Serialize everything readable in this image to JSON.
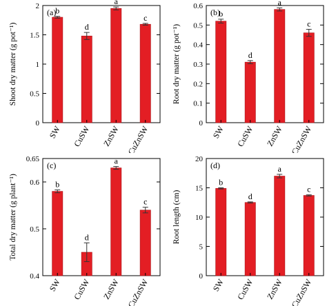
{
  "figure": {
    "bar_color": "#e31e24",
    "axis_color": "#000000"
  },
  "chart_data": [
    {
      "type": "bar",
      "panel_label": "(a)",
      "title": "",
      "xlabel": "",
      "ylabel": "Shoot dry matter (g pot⁻¹)",
      "categories": [
        "SW",
        "CuSW",
        "ZnSW",
        "CuZnSW"
      ],
      "values": [
        1.8,
        1.48,
        1.95,
        1.68
      ],
      "errors": [
        0.015,
        0.06,
        0.025,
        0.015
      ],
      "letters": [
        "b",
        "d",
        "a",
        "c"
      ],
      "ylim": [
        0,
        2
      ],
      "yticks": [
        "0",
        "0.5",
        "1",
        "1.5",
        "2"
      ],
      "ytick_values": [
        0,
        0.5,
        1,
        1.5,
        2
      ],
      "grid": false
    },
    {
      "type": "bar",
      "panel_label": "(b)",
      "title": "",
      "xlabel": "",
      "ylabel": "Root dry matter (g pot⁻¹)",
      "categories": [
        "SW",
        "CuSW",
        "ZnSW",
        "CuZnSW"
      ],
      "values": [
        0.52,
        0.31,
        0.58,
        0.46
      ],
      "errors": [
        0.01,
        0.008,
        0.008,
        0.018
      ],
      "letters": [
        "b",
        "d",
        "a",
        "c"
      ],
      "ylim": [
        0,
        0.6
      ],
      "yticks": [
        "0",
        "0.1",
        "0.2",
        "0.3",
        "0.4",
        "0.5",
        "0.6"
      ],
      "ytick_values": [
        0,
        0.1,
        0.2,
        0.3,
        0.4,
        0.5,
        0.6
      ],
      "grid": false
    },
    {
      "type": "bar",
      "panel_label": "(c)",
      "title": "",
      "xlabel": "",
      "ylabel": "Total dry matter (g plant⁻¹)",
      "categories": [
        "SW",
        "CuSW",
        "ZnSW",
        "CuZnSW"
      ],
      "values": [
        0.58,
        0.45,
        0.63,
        0.54
      ],
      "errors": [
        0.003,
        0.02,
        0.003,
        0.006
      ],
      "letters": [
        "b",
        "d",
        "a",
        "c"
      ],
      "ylim": [
        0.4,
        0.65
      ],
      "yticks": [
        "0.4",
        "0.5",
        "0.6",
        "0.65"
      ],
      "ytick_values": [
        0.4,
        0.5,
        0.6,
        0.65
      ],
      "grid": false
    },
    {
      "type": "bar",
      "panel_label": "(d)",
      "title": "",
      "xlabel": "",
      "ylabel": "Root length (cm)",
      "categories": [
        "SW",
        "CuSW",
        "ZnSW",
        "CuZnSW"
      ],
      "values": [
        14.9,
        12.5,
        17.0,
        13.7
      ],
      "errors": [
        0.1,
        0.1,
        0.3,
        0.1
      ],
      "letters": [
        "b",
        "d",
        "a",
        "c"
      ],
      "ylim": [
        0,
        20
      ],
      "yticks": [
        "0",
        "5",
        "10",
        "15",
        "20"
      ],
      "ytick_values": [
        0,
        5,
        10,
        15,
        20
      ],
      "grid": false
    }
  ]
}
